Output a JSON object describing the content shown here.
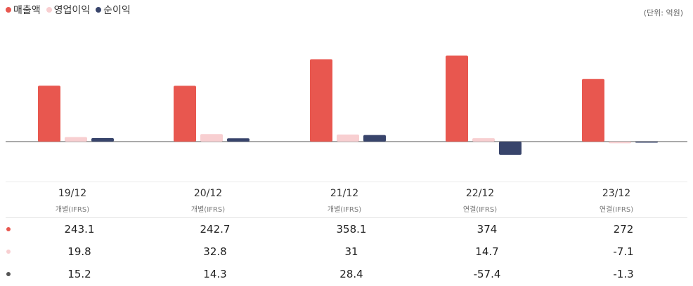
{
  "legend": {
    "items": [
      {
        "label": "매출액",
        "color": "#e8574f"
      },
      {
        "label": "영업이익",
        "color": "#f8cfd1"
      },
      {
        "label": "순이익",
        "color": "#38446b"
      }
    ]
  },
  "unit_label": "(단위: 억원)",
  "periods": [
    {
      "label": "19/12",
      "sub": "개별(IFRS)"
    },
    {
      "label": "20/12",
      "sub": "개별(IFRS)"
    },
    {
      "label": "21/12",
      "sub": "개별(IFRS)"
    },
    {
      "label": "22/12",
      "sub": "연결(IFRS)"
    },
    {
      "label": "23/12",
      "sub": "연결(IFRS)"
    }
  ],
  "rows": [
    {
      "color": "#e8574f",
      "values": [
        "243.1",
        "242.7",
        "358.1",
        "374",
        "272"
      ]
    },
    {
      "color": "#f8cfd1",
      "values": [
        "19.8",
        "32.8",
        "31",
        "14.7",
        "-7.1"
      ]
    },
    {
      "color": "#555555",
      "values": [
        "15.2",
        "14.3",
        "28.4",
        "-57.4",
        "-1.3"
      ]
    }
  ],
  "chart_data": {
    "type": "bar",
    "categories": [
      "19/12",
      "20/12",
      "21/12",
      "22/12",
      "23/12"
    ],
    "series": [
      {
        "name": "매출액",
        "color": "#e8574f",
        "values": [
          243.1,
          242.7,
          358.1,
          374,
          272
        ]
      },
      {
        "name": "영업이익",
        "color": "#f8cfd1",
        "values": [
          19.8,
          32.8,
          31,
          14.7,
          -7.1
        ]
      },
      {
        "name": "순이익",
        "color": "#38446b",
        "values": [
          15.2,
          14.3,
          28.4,
          -57.4,
          -1.3
        ]
      }
    ],
    "legend": "top-left",
    "grid": false
  }
}
